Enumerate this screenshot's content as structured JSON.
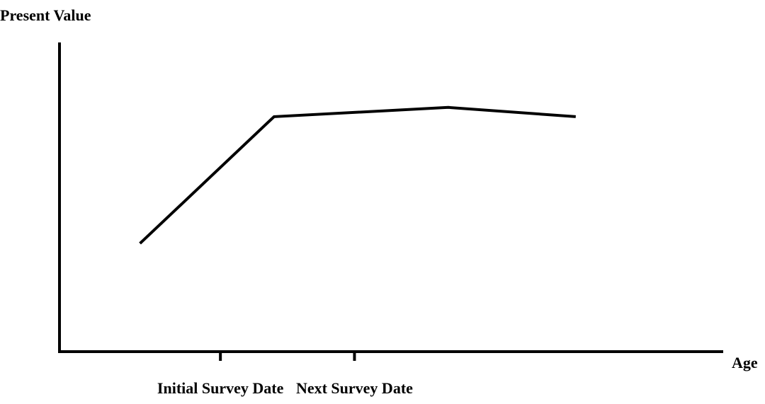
{
  "chart_data": {
    "type": "line",
    "title": "",
    "ylabel": "Present Value",
    "xlabel": "Age",
    "x_ticks": [
      "Initial Survey Date",
      "Next Survey Date"
    ],
    "x": [
      -0.6,
      0.4,
      1.7,
      2.65
    ],
    "series": [
      {
        "values": [
          0.35,
          0.76,
          0.79,
          0.76
        ]
      }
    ],
    "xlim": [
      -1.2,
      3.75
    ],
    "ylim": [
      0,
      1
    ],
    "grid": false,
    "colors": {
      "axis": "#000000",
      "line": "#000000",
      "background": "#ffffff"
    }
  }
}
